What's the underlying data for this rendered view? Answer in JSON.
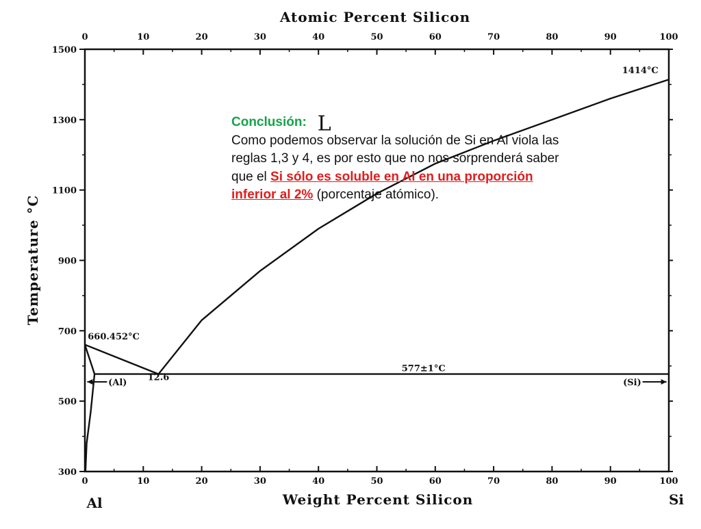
{
  "chart_data": {
    "type": "line",
    "title": "Atomic Percent Silicon",
    "xlabel": "Weight Percent Silicon",
    "ylabel": "Temperature °C",
    "xlim": [
      0,
      100
    ],
    "ylim": [
      300,
      1500
    ],
    "xticks": [
      "0",
      "10",
      "20",
      "30",
      "40",
      "50",
      "60",
      "70",
      "80",
      "90",
      "100"
    ],
    "xticks_top": [
      "0",
      "10",
      "20",
      "30",
      "40",
      "50",
      "60",
      "70",
      "80",
      "90",
      "100"
    ],
    "yticks": [
      "300",
      "500",
      "700",
      "900",
      "1100",
      "1300",
      "1500"
    ],
    "x_end_labels": {
      "left": "Al",
      "right": "Si"
    },
    "series": [
      {
        "x": [
          0,
          12.6
        ],
        "y": [
          660.452,
          577
        ]
      },
      {
        "x": [
          12.6,
          20,
          30,
          40,
          50,
          60,
          70,
          80,
          90,
          100
        ],
        "y": [
          577,
          730,
          870,
          990,
          1090,
          1175,
          1240,
          1300,
          1360,
          1414
        ]
      },
      {
        "x": [
          1.65,
          100
        ],
        "y": [
          577,
          577
        ]
      },
      {
        "x": [
          0,
          1.2,
          1.65
        ],
        "y": [
          660.452,
          600,
          577
        ]
      },
      {
        "x": [
          1.65,
          1.0,
          0.3,
          0.1
        ],
        "y": [
          577,
          470,
          380,
          300
        ]
      }
    ],
    "annotations": [
      {
        "text": "1414°C",
        "x": 92,
        "y": 1432
      },
      {
        "text": "660.452°C",
        "x": 0.5,
        "y": 675
      },
      {
        "text": "12.6",
        "x": 12.6,
        "y": 560
      },
      {
        "text": "577±1°C",
        "x": 58,
        "y": 585
      },
      {
        "text": "(Al)",
        "x": 4,
        "y": 545
      },
      {
        "text": "(Si)",
        "x": 92,
        "y": 545
      },
      {
        "text": "L",
        "x": 41,
        "y": 1270
      }
    ],
    "grid": false
  },
  "conclusion": {
    "heading": "Conclusión:",
    "body_before": "Como podemos observar la solución de Si en Al viola las reglas 1,3 y 4, es por esto que no nos sorprenderá saber que el ",
    "highlight": "Si sólo es soluble en Al en una proporción inferior al 2%",
    "body_after": " (porcentaje atómico).",
    "heading_color": "#16a34a",
    "highlight_color": "#e11d1d"
  }
}
